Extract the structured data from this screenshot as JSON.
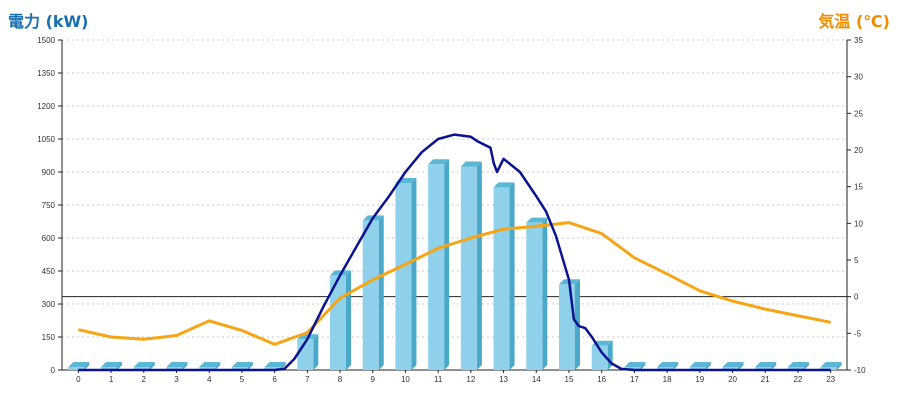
{
  "chart_data": {
    "type": "bar",
    "left_axis_title": "電力 (kW)",
    "right_axis_title": "気温 (℃)",
    "categories": [
      "0",
      "1",
      "2",
      "3",
      "4",
      "5",
      "6",
      "7",
      "8",
      "9",
      "10",
      "11",
      "12",
      "13",
      "14",
      "15",
      "16",
      "17",
      "18",
      "19",
      "20",
      "21",
      "22",
      "23"
    ],
    "y_left": {
      "min": 0,
      "max": 1500,
      "ticks": [
        0,
        150,
        300,
        450,
        600,
        750,
        900,
        1050,
        1200,
        1350,
        1500
      ]
    },
    "y_right": {
      "min": -10,
      "max": 35,
      "ticks": [
        -10,
        -5,
        0,
        5,
        10,
        15,
        20,
        25,
        30,
        35
      ]
    },
    "grid": true,
    "series": [
      {
        "kind": "bar",
        "axis": "left",
        "values": [
          0,
          0,
          0,
          0,
          0,
          0,
          0,
          140,
          430,
          680,
          850,
          935,
          925,
          830,
          670,
          390,
          110,
          0,
          0,
          0,
          0,
          0,
          0,
          0
        ]
      },
      {
        "kind": "line",
        "axis": "left",
        "x": [
          0,
          1,
          2,
          3,
          4,
          5,
          6,
          6.3,
          6.6,
          7,
          7.5,
          8,
          8.5,
          9,
          9.5,
          10,
          10.5,
          11,
          11.5,
          12,
          12.2,
          12.4,
          12.6,
          12.7,
          12.8,
          13,
          13.5,
          14,
          14.3,
          14.6,
          14.8,
          15,
          15.15,
          15.3,
          15.5,
          15.7,
          16,
          16.3,
          16.6,
          17,
          18,
          19,
          20,
          21,
          22,
          23
        ],
        "values": [
          0,
          0,
          0,
          0,
          0,
          0,
          0,
          5,
          50,
          140,
          290,
          430,
          560,
          690,
          790,
          900,
          990,
          1050,
          1070,
          1060,
          1040,
          1025,
          1010,
          940,
          900,
          960,
          900,
          790,
          720,
          610,
          510,
          410,
          230,
          200,
          190,
          150,
          80,
          30,
          5,
          0,
          0,
          0,
          0,
          0,
          0,
          0
        ]
      },
      {
        "kind": "line",
        "axis": "right",
        "values": [
          -4.5,
          -5.5,
          -5.8,
          -5.3,
          -3.3,
          -4.6,
          -6.5,
          -4.9,
          -0.2,
          2.3,
          4.4,
          6.6,
          8.0,
          9.2,
          9.6,
          10.1,
          8.6,
          5.3,
          3.1,
          0.8,
          -0.6,
          -1.7,
          -2.6,
          -3.5
        ]
      }
    ],
    "colors": {
      "bar_front": "#8fd0ea",
      "bar_side": "#4aa8c8",
      "bar_top": "#5ab8d6",
      "power_line": "#0a1290",
      "temp_line": "#f5a516",
      "left_title": "#1a6fb0",
      "right_title": "#f08c00",
      "grid": "#c8c8c8",
      "axis": "#222222"
    }
  }
}
